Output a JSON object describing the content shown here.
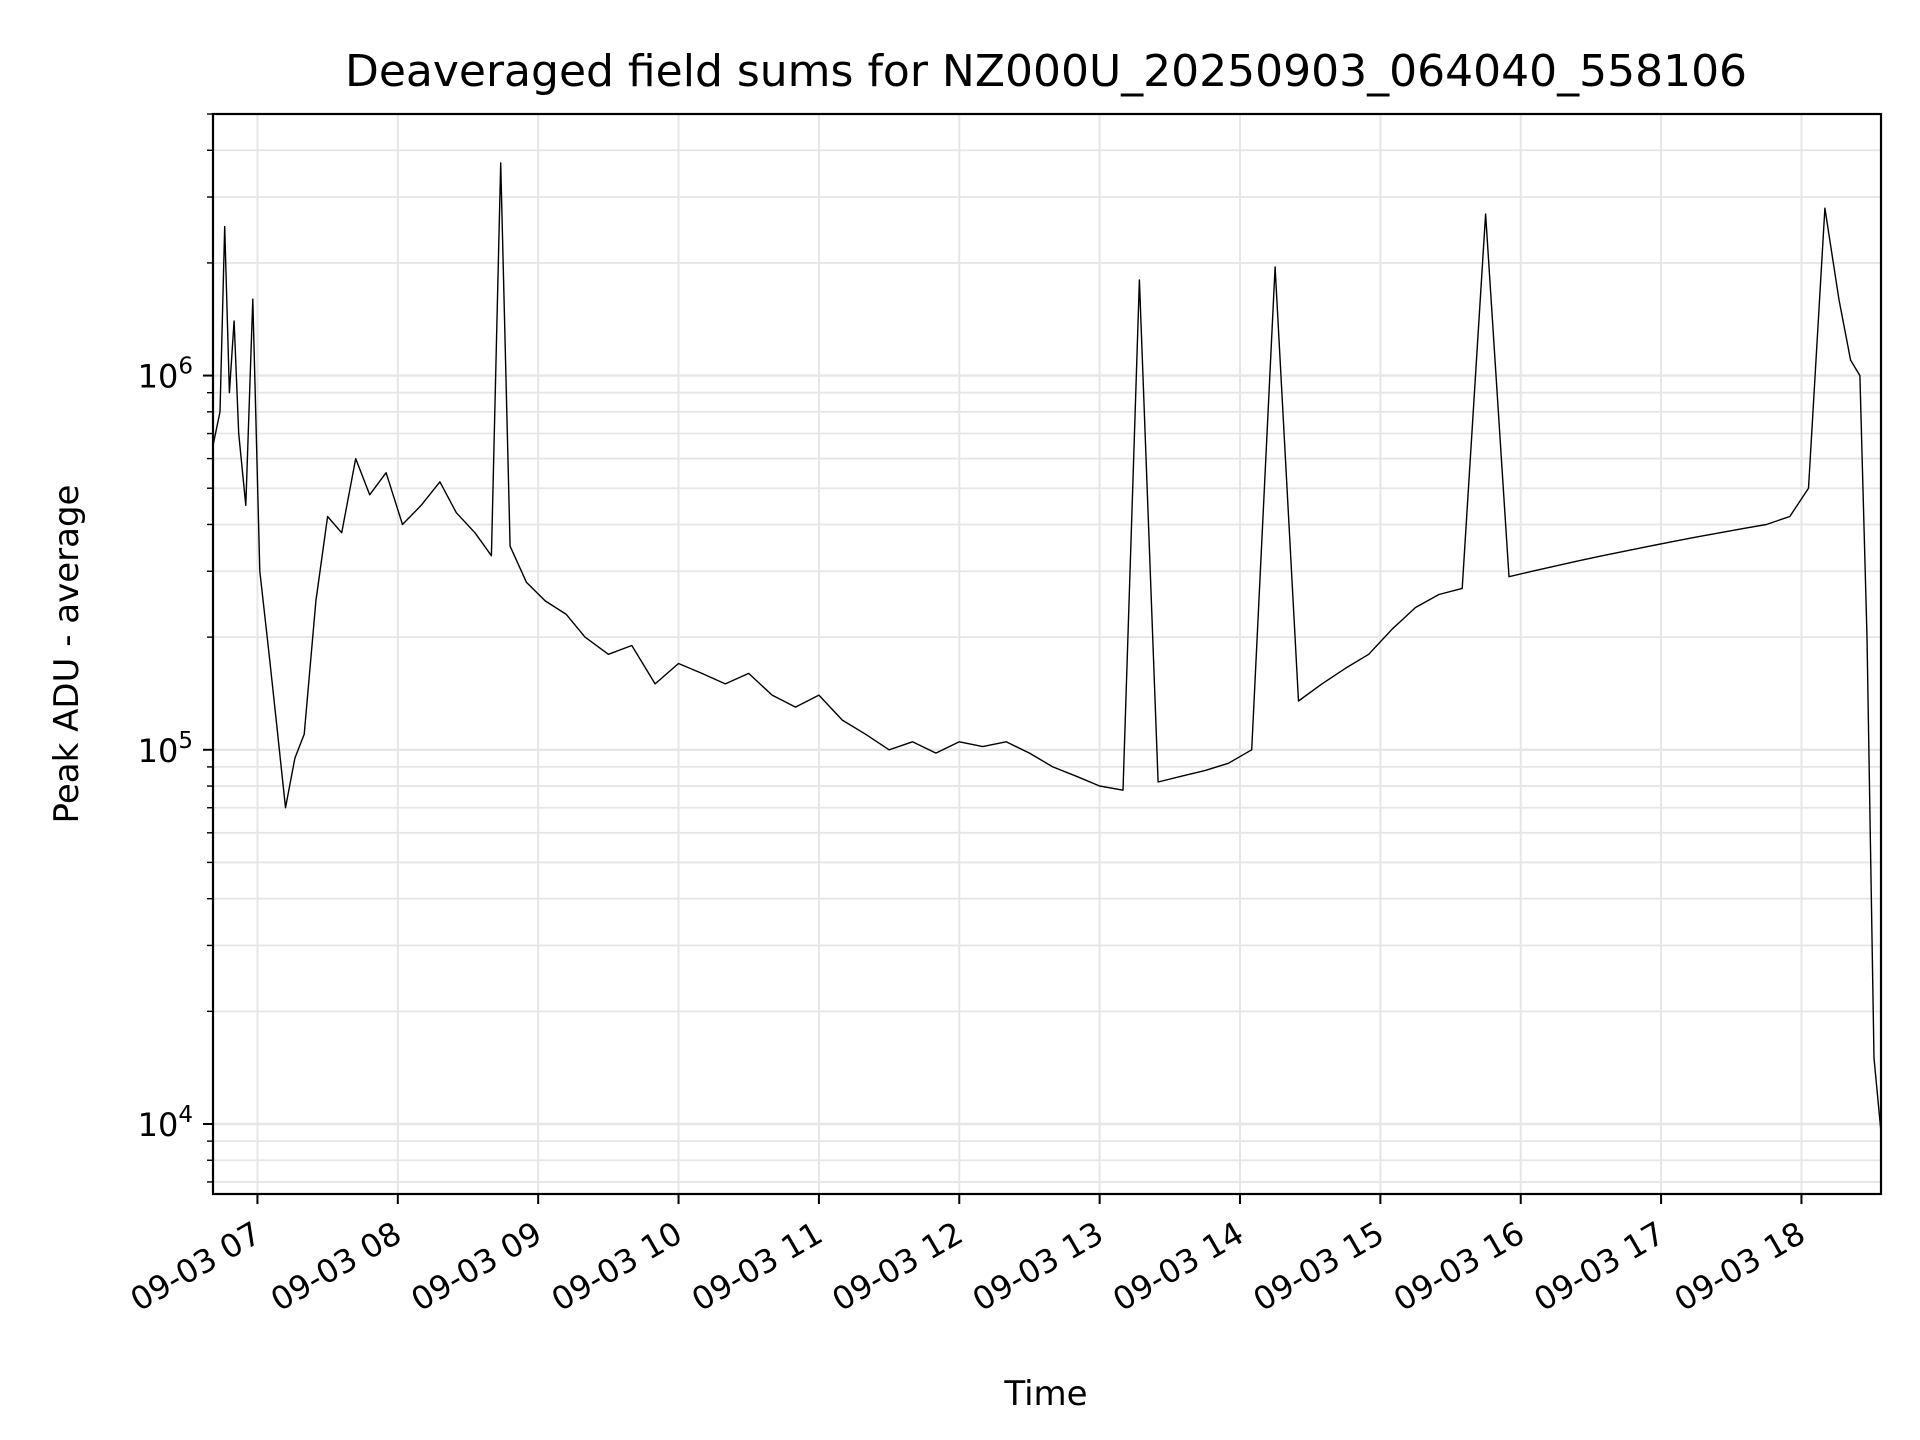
{
  "chart_data": {
    "type": "line",
    "title": "Deaveraged field sums for NZ000U_20250903_064040_558106",
    "xlabel": "Time",
    "ylabel": "Peak ADU - average",
    "yscale": "log",
    "ylim": [
      6500,
      5000000
    ],
    "xlim": [
      "2025-09-03 06:41",
      "2025-09-03 18:34"
    ],
    "grid": true,
    "grid_minor": true,
    "line_color": "#000000",
    "grid_color": "#e6e6e6",
    "y_ticks": [
      {
        "value": 10000,
        "base": "10",
        "exp": "4"
      },
      {
        "value": 100000,
        "base": "10",
        "exp": "5"
      },
      {
        "value": 1000000,
        "base": "10",
        "exp": "6"
      }
    ],
    "x_ticks": [
      {
        "value": "2025-09-03 07:00",
        "label": "09-03 07"
      },
      {
        "value": "2025-09-03 08:00",
        "label": "09-03 08"
      },
      {
        "value": "2025-09-03 09:00",
        "label": "09-03 09"
      },
      {
        "value": "2025-09-03 10:00",
        "label": "09-03 10"
      },
      {
        "value": "2025-09-03 11:00",
        "label": "09-03 11"
      },
      {
        "value": "2025-09-03 12:00",
        "label": "09-03 12"
      },
      {
        "value": "2025-09-03 13:00",
        "label": "09-03 13"
      },
      {
        "value": "2025-09-03 14:00",
        "label": "09-03 14"
      },
      {
        "value": "2025-09-03 15:00",
        "label": "09-03 15"
      },
      {
        "value": "2025-09-03 16:00",
        "label": "09-03 16"
      },
      {
        "value": "2025-09-03 17:00",
        "label": "09-03 17"
      },
      {
        "value": "2025-09-03 18:00",
        "label": "09-03 18"
      }
    ],
    "series": [
      {
        "x": [
          "2025-09-03 06:41",
          "2025-09-03 06:44",
          "2025-09-03 06:46",
          "2025-09-03 06:48",
          "2025-09-03 06:50",
          "2025-09-03 06:52",
          "2025-09-03 06:55",
          "2025-09-03 06:58",
          "2025-09-03 07:01",
          "2025-09-03 07:05",
          "2025-09-03 07:08",
          "2025-09-03 07:12",
          "2025-09-03 07:16",
          "2025-09-03 07:20",
          "2025-09-03 07:25",
          "2025-09-03 07:30",
          "2025-09-03 07:36",
          "2025-09-03 07:42",
          "2025-09-03 07:48",
          "2025-09-03 07:55",
          "2025-09-03 08:02",
          "2025-09-03 08:10",
          "2025-09-03 08:18",
          "2025-09-03 08:25",
          "2025-09-03 08:33",
          "2025-09-03 08:40",
          "2025-09-03 08:44",
          "2025-09-03 08:48",
          "2025-09-03 08:55",
          "2025-09-03 09:03",
          "2025-09-03 09:12",
          "2025-09-03 09:20",
          "2025-09-03 09:30",
          "2025-09-03 09:40",
          "2025-09-03 09:50",
          "2025-09-03 10:00",
          "2025-09-03 10:10",
          "2025-09-03 10:20",
          "2025-09-03 10:30",
          "2025-09-03 10:40",
          "2025-09-03 10:50",
          "2025-09-03 11:00",
          "2025-09-03 11:10",
          "2025-09-03 11:20",
          "2025-09-03 11:30",
          "2025-09-03 11:40",
          "2025-09-03 11:50",
          "2025-09-03 12:00",
          "2025-09-03 12:10",
          "2025-09-03 12:20",
          "2025-09-03 12:30",
          "2025-09-03 12:40",
          "2025-09-03 12:50",
          "2025-09-03 13:00",
          "2025-09-03 13:10",
          "2025-09-03 13:17",
          "2025-09-03 13:25",
          "2025-09-03 13:35",
          "2025-09-03 13:45",
          "2025-09-03 13:55",
          "2025-09-03 14:05",
          "2025-09-03 14:15",
          "2025-09-03 14:25",
          "2025-09-03 14:35",
          "2025-09-03 14:45",
          "2025-09-03 14:55",
          "2025-09-03 15:05",
          "2025-09-03 15:15",
          "2025-09-03 15:25",
          "2025-09-03 15:35",
          "2025-09-03 15:45",
          "2025-09-03 15:55",
          "2025-09-03 16:05",
          "2025-09-03 16:15",
          "2025-09-03 16:25",
          "2025-09-03 16:35",
          "2025-09-03 16:45",
          "2025-09-03 16:55",
          "2025-09-03 17:05",
          "2025-09-03 17:15",
          "2025-09-03 17:25",
          "2025-09-03 17:35",
          "2025-09-03 17:45",
          "2025-09-03 17:55",
          "2025-09-03 18:03",
          "2025-09-03 18:10",
          "2025-09-03 18:16",
          "2025-09-03 18:21",
          "2025-09-03 18:25",
          "2025-09-03 18:28",
          "2025-09-03 18:31",
          "2025-09-03 18:34"
        ],
        "y": [
          650000,
          800000,
          2500000,
          900000,
          1400000,
          700000,
          450000,
          1600000,
          300000,
          180000,
          120000,
          70000,
          95000,
          110000,
          250000,
          420000,
          380000,
          600000,
          480000,
          550000,
          400000,
          450000,
          520000,
          430000,
          380000,
          330000,
          3700000,
          350000,
          280000,
          250000,
          230000,
          200000,
          180000,
          190000,
          150000,
          170000,
          160000,
          150000,
          160000,
          140000,
          130000,
          140000,
          120000,
          110000,
          100000,
          105000,
          98000,
          105000,
          102000,
          105000,
          98000,
          90000,
          85000,
          80000,
          78000,
          1800000,
          82000,
          85000,
          88000,
          92000,
          100000,
          1950000,
          135000,
          150000,
          165000,
          180000,
          210000,
          240000,
          260000,
          270000,
          2700000,
          290000,
          300000,
          310000,
          320000,
          330000,
          340000,
          350000,
          360000,
          370000,
          380000,
          390000,
          400000,
          420000,
          500000,
          2800000,
          1600000,
          1100000,
          1000000,
          200000,
          15000,
          9500
        ]
      }
    ]
  }
}
